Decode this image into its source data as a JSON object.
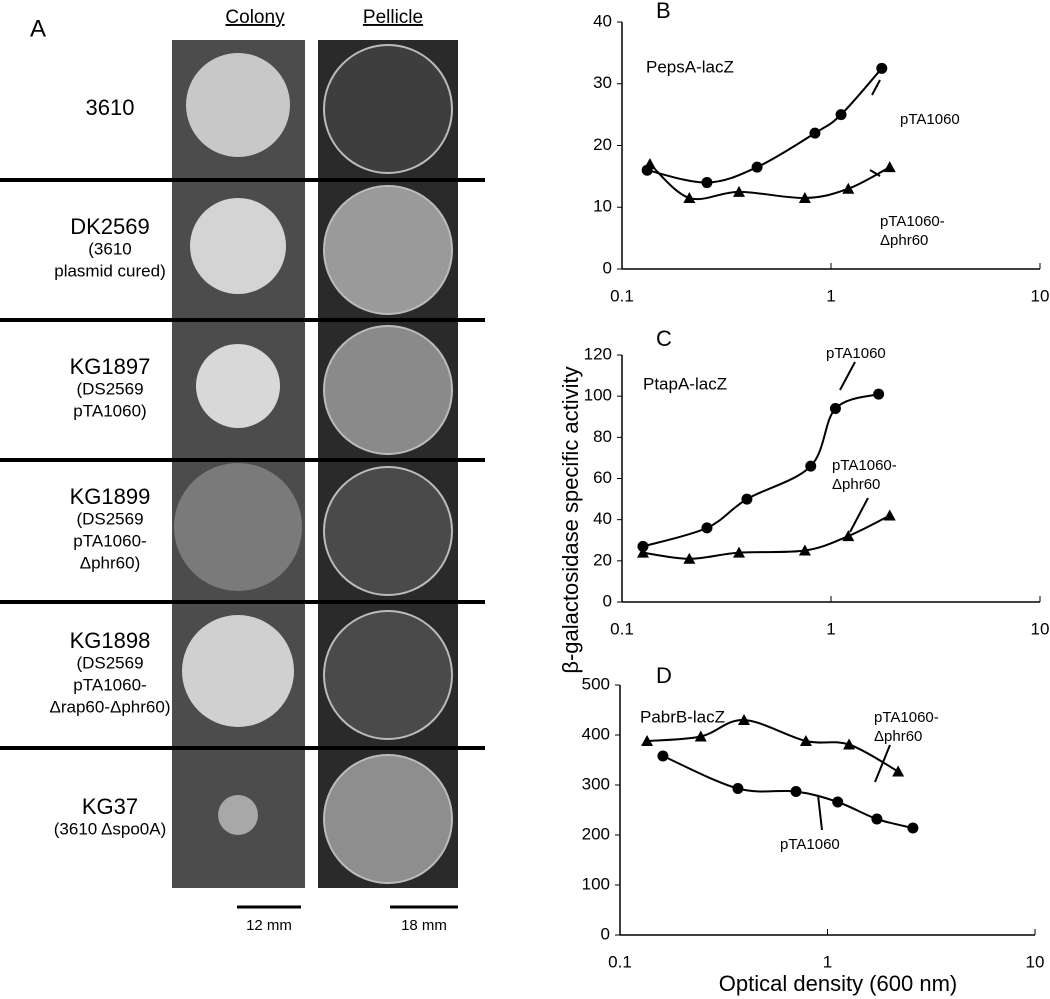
{
  "panel_a": {
    "label": "A",
    "headers": [
      "Colony",
      "Pellicle"
    ],
    "rows": [
      {
        "strain": "3610"
      },
      {
        "strain": "DK2569",
        "note": [
          "(3610",
          "plasmid cured)"
        ]
      },
      {
        "strain": "KG1897",
        "note": [
          "(DS2569",
          "pTA1060)"
        ]
      },
      {
        "strain": "KG1899",
        "note": [
          "(DS2569",
          "pTA1060-",
          "Δphr60)"
        ]
      },
      {
        "strain": "KG1898",
        "note": [
          "(DS2569",
          "pTA1060-",
          "Δrap60-Δphr60)"
        ]
      },
      {
        "strain": "KG37",
        "note": [
          "(3610 Δspo0A)"
        ]
      }
    ],
    "scale_bars": [
      "12 mm",
      "18 mm"
    ]
  },
  "chart_data": [
    {
      "type": "line",
      "panel_label": "B",
      "annotation": "PepsA-lacZ",
      "xlog": true,
      "xlim": [
        0.1,
        10
      ],
      "xticks": [
        0.1,
        1,
        10
      ],
      "ylim": [
        0,
        40
      ],
      "yticks": [
        0,
        10,
        20,
        30,
        40
      ],
      "series": [
        {
          "name": "pTA1060",
          "color": "#000000",
          "marker": "circle",
          "x": [
            0.132,
            0.255,
            0.443,
            0.838,
            1.117,
            1.75
          ],
          "values": [
            16,
            14,
            16.5,
            22,
            25,
            32.5
          ]
        },
        {
          "name": "pTA1060-Δphr60",
          "color": "#000000",
          "marker": "triangle",
          "x": [
            0.136,
            0.21,
            0.363,
            0.75,
            1.21,
            1.91
          ],
          "values": [
            17,
            11.5,
            12.5,
            11.5,
            13,
            16.5
          ]
        }
      ]
    },
    {
      "type": "line",
      "panel_label": "C",
      "annotation": "PtapA-lacZ",
      "xlog": true,
      "ylabel": "β-galactosidase specific activity",
      "xlim": [
        0.1,
        10
      ],
      "xticks": [
        0.1,
        1,
        10
      ],
      "ylim": [
        0,
        120
      ],
      "yticks": [
        0,
        20,
        40,
        60,
        80,
        100,
        120
      ],
      "series": [
        {
          "name": "pTA1060",
          "color": "#000000",
          "marker": "circle",
          "x": [
            0.126,
            0.255,
            0.396,
            0.8,
            1.05,
            1.69
          ],
          "values": [
            27,
            36,
            50,
            66,
            94,
            101
          ]
        },
        {
          "name": "pTA1060-Δphr60",
          "color": "#000000",
          "marker": "triangle",
          "x": [
            0.126,
            0.21,
            0.363,
            0.75,
            1.21,
            1.91
          ],
          "values": [
            24,
            21,
            24,
            25,
            32,
            42
          ]
        }
      ]
    },
    {
      "type": "line",
      "panel_label": "D",
      "annotation": "PabrB-lacZ",
      "xlog": true,
      "xlabel": "Optical density (600 nm)",
      "xlim": [
        0.1,
        10
      ],
      "xticks": [
        0.1,
        1,
        10
      ],
      "ylim": [
        0,
        500
      ],
      "yticks": [
        0,
        100,
        200,
        300,
        400,
        500
      ],
      "series": [
        {
          "name": "pTA1060-Δphr60",
          "color": "#000000",
          "marker": "triangle",
          "x": [
            0.135,
            0.245,
            0.396,
            0.787,
            1.27,
            2.19
          ],
          "values": [
            388,
            397,
            430,
            388,
            381,
            327
          ]
        },
        {
          "name": "pTA1060",
          "color": "#000000",
          "marker": "circle",
          "x": [
            0.161,
            0.37,
            0.705,
            1.12,
            1.73,
            2.58
          ],
          "values": [
            358,
            293,
            287,
            266,
            232,
            214
          ]
        }
      ]
    }
  ]
}
